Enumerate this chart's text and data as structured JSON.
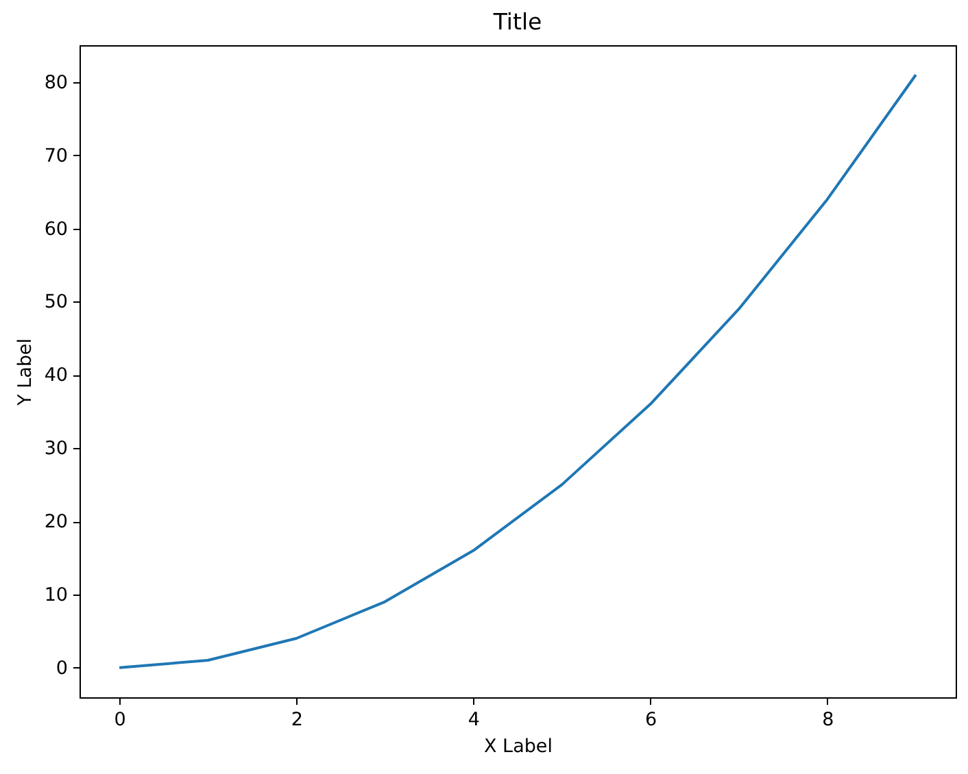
{
  "chart_data": {
    "type": "line",
    "title": "Title",
    "xlabel": "X Label",
    "ylabel": "Y Label",
    "x": [
      0,
      1,
      2,
      3,
      4,
      5,
      6,
      7,
      8,
      9
    ],
    "series": [
      {
        "color": "#1f77b4",
        "values": [
          0,
          1,
          4,
          9,
          16,
          25,
          36,
          49,
          64,
          81
        ]
      }
    ],
    "xlim": [
      -0.45,
      9.45
    ],
    "ylim": [
      -4.05,
      85.05
    ],
    "xticks": [
      0,
      2,
      4,
      6,
      8
    ],
    "yticks": [
      0,
      10,
      20,
      30,
      40,
      50,
      60,
      70,
      80
    ],
    "line_style": "solid"
  }
}
